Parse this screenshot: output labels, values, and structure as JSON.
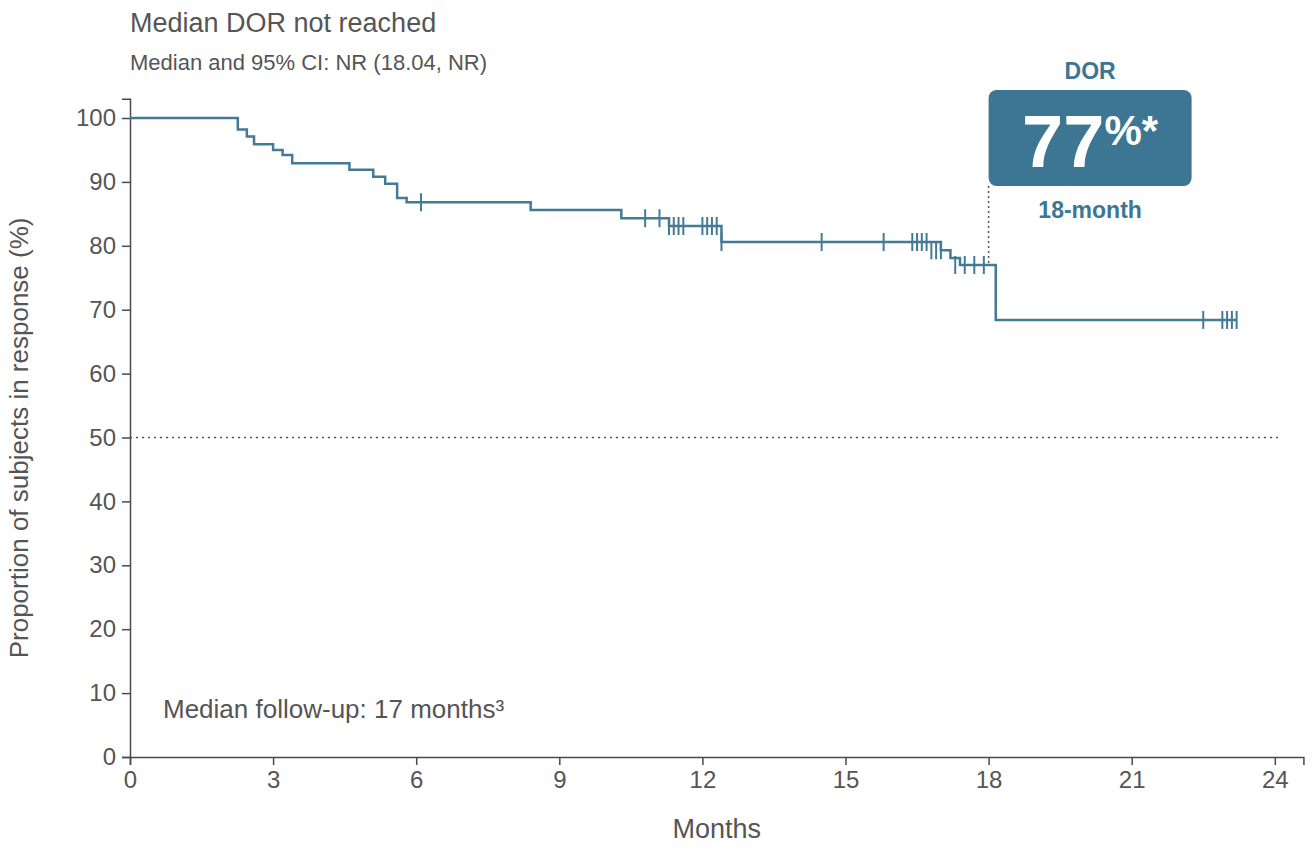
{
  "chart_data": {
    "type": "line",
    "title": "Median DOR not reached",
    "subtitle": "Median and 95% CI: NR (18.04, NR)",
    "x_label": "Months",
    "y_label": "Proportion of subjects in response (%)",
    "xlim": [
      0,
      24.6
    ],
    "xticks": [
      0,
      3,
      6,
      9,
      12,
      15,
      18,
      21,
      24
    ],
    "ylim": [
      0,
      103
    ],
    "yticks": [
      0,
      10,
      20,
      30,
      40,
      50,
      60,
      70,
      80,
      90,
      100
    ],
    "grid": false,
    "series": [
      {
        "color": "#437a94",
        "line_style": "step",
        "x": [
          0,
          2.26,
          2.45,
          2.6,
          3.0,
          3.2,
          3.4,
          4.6,
          5.1,
          5.35,
          5.6,
          5.8,
          8.4,
          10.3,
          11.3,
          12.4,
          17.0,
          17.2,
          17.4,
          18.15,
          23.2
        ],
        "values": [
          100,
          98.2,
          97.1,
          95.9,
          95.0,
          94.2,
          92.9,
          91.9,
          90.8,
          89.7,
          87.5,
          86.8,
          85.6,
          84.3,
          83.1,
          80.6,
          79.3,
          78.1,
          77.0,
          68.4,
          68.4
        ]
      }
    ],
    "censored": {
      "x": [
        6.1,
        10.8,
        11.1,
        11.3,
        11.4,
        11.5,
        11.6,
        12.0,
        12.1,
        12.2,
        12.3,
        12.4,
        14.5,
        15.8,
        16.4,
        16.5,
        16.6,
        16.7,
        16.8,
        16.9,
        17.0,
        17.3,
        17.5,
        17.7,
        17.9,
        22.5,
        22.9,
        23.0,
        23.1,
        23.2
      ],
      "values": [
        86.8,
        84.3,
        84.3,
        83.1,
        83.1,
        83.1,
        83.1,
        83.1,
        83.1,
        83.1,
        83.1,
        80.6,
        80.6,
        80.6,
        80.6,
        80.6,
        80.6,
        80.6,
        79.3,
        79.3,
        79.3,
        77.0,
        77.0,
        77.0,
        77.0,
        68.4,
        68.4,
        68.4,
        68.4,
        68.4
      ]
    },
    "reference_line": 50,
    "callout": {
      "header": "DOR",
      "value": 77,
      "value_label": "77%*",
      "footer": "18-month",
      "x": 18,
      "color": "#3d7693"
    },
    "footnote": "Median follow-up: 17 months³"
  }
}
